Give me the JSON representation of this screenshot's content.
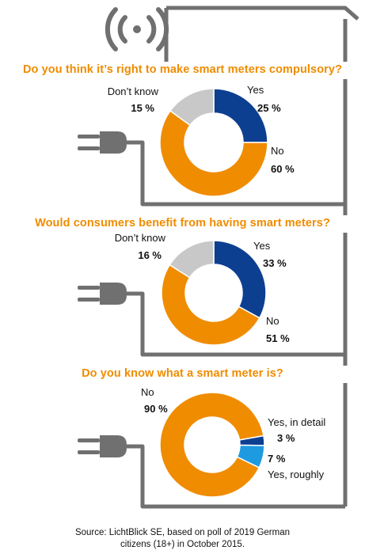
{
  "colors": {
    "orange": "#f08c00",
    "blue": "#0d3f91",
    "light_blue": "#1e9ae0",
    "gray": "#c8c8c8",
    "cable": "#707070"
  },
  "icons": [
    "signal-icon",
    "plug-icon"
  ],
  "chart_data": [
    {
      "type": "pie",
      "title": "Do you think it’s right to make smart meters compulsory?",
      "slices": [
        {
          "label": "Yes",
          "value": 25,
          "display": "25 %",
          "color": "#0d3f91"
        },
        {
          "label": "No",
          "value": 60,
          "display": "60 %",
          "color": "#f08c00"
        },
        {
          "label": "Don’t know",
          "value": 15,
          "display": "15 %",
          "color": "#c8c8c8"
        }
      ]
    },
    {
      "type": "pie",
      "title": "Would consumers benefit from having smart meters?",
      "slices": [
        {
          "label": "Yes",
          "value": 33,
          "display": "33 %",
          "color": "#0d3f91"
        },
        {
          "label": "No",
          "value": 51,
          "display": "51 %",
          "color": "#f08c00"
        },
        {
          "label": "Don’t know",
          "value": 16,
          "display": "16 %",
          "color": "#c8c8c8"
        }
      ]
    },
    {
      "type": "pie",
      "title": "Do you know what a smart meter is?",
      "slices": [
        {
          "label": "Yes, in detail",
          "value": 3,
          "display": "3 %",
          "color": "#0d3f91"
        },
        {
          "label": "Yes, roughly",
          "value": 7,
          "display": "7 %",
          "color": "#1e9ae0"
        },
        {
          "label": "No",
          "value": 90,
          "display": "90 %",
          "color": "#f08c00"
        }
      ]
    }
  ],
  "source": {
    "line1": "Source: LichtBlick SE, based on poll of 2019 German",
    "line2": "citizens (18+) in October 2015."
  }
}
